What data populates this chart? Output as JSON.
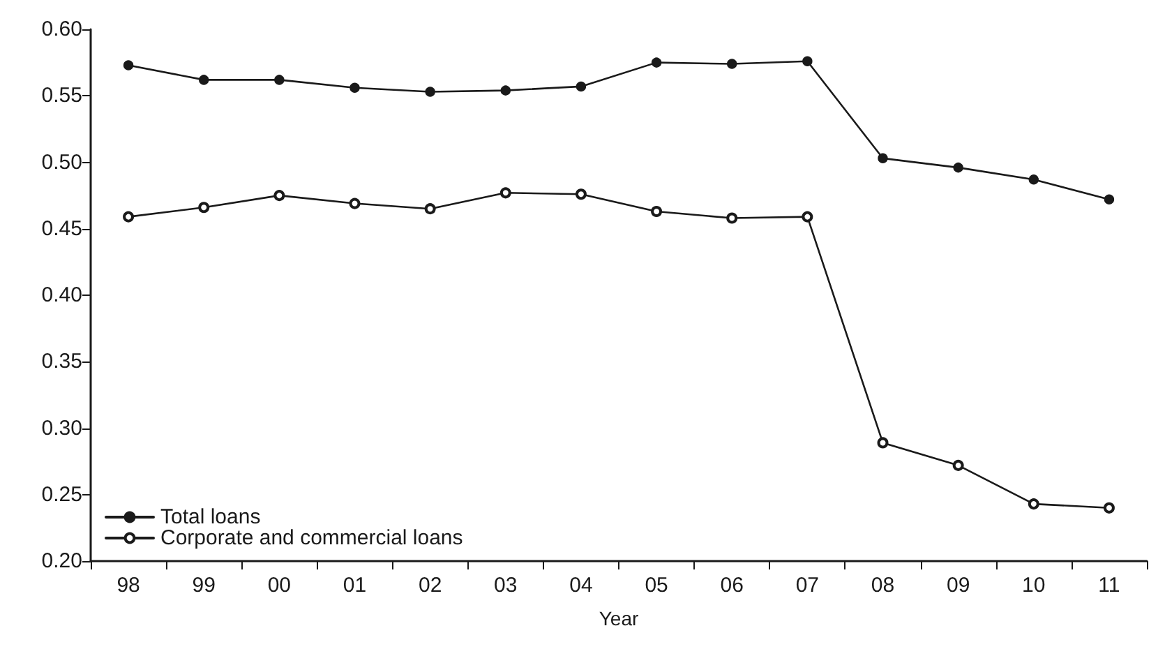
{
  "chart_data": {
    "type": "line",
    "xlabel": "Year",
    "categories": [
      "98",
      "99",
      "00",
      "01",
      "02",
      "03",
      "04",
      "05",
      "06",
      "07",
      "08",
      "09",
      "10",
      "11"
    ],
    "series": [
      {
        "name": "Total loans",
        "color": "#1a1a1a",
        "values": [
          0.573,
          0.562,
          0.562,
          0.556,
          0.553,
          0.554,
          0.557,
          0.575,
          0.574,
          0.576,
          0.503,
          0.496,
          0.487,
          0.472
        ]
      },
      {
        "name": "Corporate and commercial loans",
        "color": "#1a1a1a",
        "values": [
          0.459,
          0.466,
          0.475,
          0.469,
          0.465,
          0.477,
          0.476,
          0.463,
          0.458,
          0.459,
          0.289,
          0.272,
          0.243,
          0.24
        ]
      }
    ],
    "ylim": [
      0.2,
      0.6
    ],
    "yticks": [
      {
        "value": 0.2,
        "label": "0.20"
      },
      {
        "value": 0.25,
        "label": "0.25"
      },
      {
        "value": 0.3,
        "label": "0.30"
      },
      {
        "value": 0.35,
        "label": "0.35"
      },
      {
        "value": 0.4,
        "label": "0.40"
      },
      {
        "value": 0.45,
        "label": "0.45"
      },
      {
        "value": 0.5,
        "label": "0.50"
      },
      {
        "value": 0.55,
        "label": "0.55"
      },
      {
        "value": 0.6,
        "label": "0.60"
      }
    ],
    "grid": false,
    "legend": "bottom left",
    "marker": "circle",
    "line_style": "solid"
  }
}
